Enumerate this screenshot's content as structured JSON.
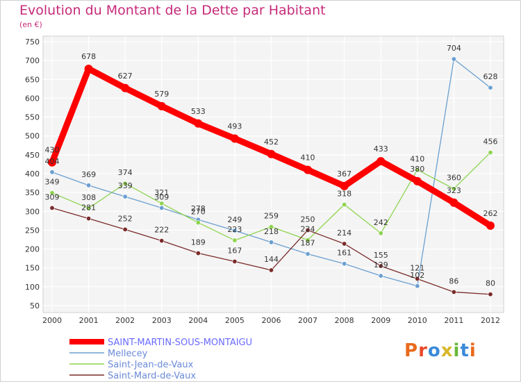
{
  "title": "Evolution du Montant de la Dette par Habitant",
  "subtitle": "(en €)",
  "logo_text": "Proxiti",
  "chart_data": {
    "type": "line",
    "title": "Evolution du Montant de la Dette par Habitant",
    "subtitle": "(en €)",
    "x": [
      "2000",
      "2001",
      "2002",
      "2003",
      "2004",
      "2005",
      "2006",
      "2007",
      "2008",
      "2009",
      "2010",
      "2011",
      "2012"
    ],
    "ylim": [
      50,
      750
    ],
    "yticks": [
      50,
      100,
      150,
      200,
      250,
      300,
      350,
      400,
      450,
      500,
      550,
      600,
      650,
      700,
      750
    ],
    "grid": true,
    "legend_position": "bottom-left",
    "series": [
      {
        "name": "SAINT-MARTIN-SOUS-MONTAIGU",
        "color": "#ff0000",
        "values": [
          430,
          678,
          627,
          579,
          533,
          493,
          452,
          410,
          367,
          433,
          380,
          323,
          262
        ]
      },
      {
        "name": "Mellecey",
        "color": "#6a9fd0",
        "values": [
          404,
          369,
          339,
          309,
          278,
          249,
          218,
          187,
          161,
          129,
          102,
          704,
          628
        ]
      },
      {
        "name": "Saint-Jean-de-Vaux",
        "color": "#8ed44f",
        "values": [
          349,
          308,
          374,
          321,
          270,
          223,
          259,
          224,
          318,
          242,
          410,
          360,
          456
        ]
      },
      {
        "name": "Saint-Mard-de-Vaux",
        "color": "#7a2a2a",
        "values": [
          309,
          281,
          252,
          222,
          189,
          167,
          144,
          250,
          214,
          155,
          121,
          86,
          80
        ]
      }
    ]
  }
}
